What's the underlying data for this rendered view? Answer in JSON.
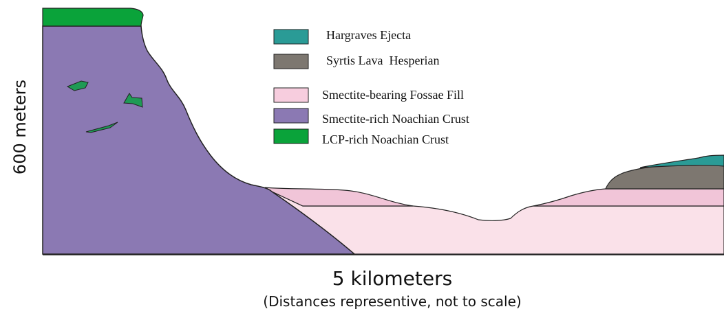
{
  "legend": [
    {
      "label": "Hargraves Ejecta"
    },
    {
      "label": "Syrtis Lava  Hesperian"
    },
    {
      "label": "Smectite-bearing Fossae Fill"
    },
    {
      "label": "Smectite-rich Noachian Crust"
    },
    {
      "label": "LCP-rich Noachian Crust"
    }
  ],
  "y_label": "600 meters",
  "x_label": "5 kilometers",
  "caption": "(Distances representive, not to scale)"
}
